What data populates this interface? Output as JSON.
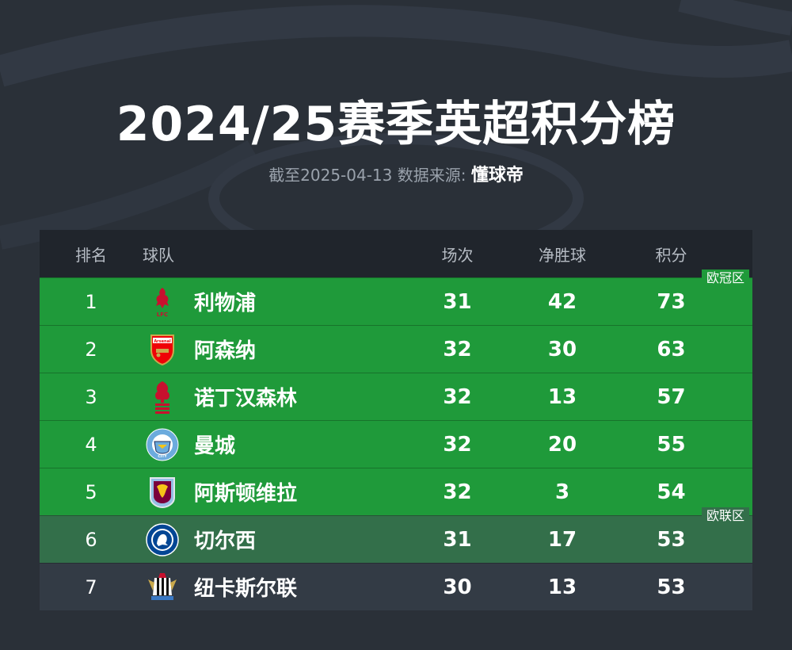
{
  "header": {
    "title": "2024/25赛季英超积分榜",
    "subtitle_prefix": "截至2025-04-13 数据来源:",
    "source_name": "懂球帝"
  },
  "table": {
    "columns": {
      "rank": "排名",
      "team": "球队",
      "played": "场次",
      "goal_diff": "净胜球",
      "points": "积分"
    },
    "zone_labels": {
      "ucl": "欧冠区",
      "uel": "欧联区"
    },
    "rows": [
      {
        "rank": "1",
        "team": "利物浦",
        "played": "31",
        "goal_diff": "42",
        "points": "73",
        "logo": "liverpool-crest-icon"
      },
      {
        "rank": "2",
        "team": "阿森纳",
        "played": "32",
        "goal_diff": "30",
        "points": "63",
        "logo": "arsenal-crest-icon"
      },
      {
        "rank": "3",
        "team": "诺丁汉森林",
        "played": "32",
        "goal_diff": "13",
        "points": "57",
        "logo": "nottingham-forest-crest-icon"
      },
      {
        "rank": "4",
        "team": "曼城",
        "played": "32",
        "goal_diff": "20",
        "points": "55",
        "logo": "manchester-city-crest-icon"
      },
      {
        "rank": "5",
        "team": "阿斯顿维拉",
        "played": "32",
        "goal_diff": "3",
        "points": "54",
        "logo": "aston-villa-crest-icon"
      },
      {
        "rank": "6",
        "team": "切尔西",
        "played": "31",
        "goal_diff": "17",
        "points": "53",
        "logo": "chelsea-crest-icon"
      },
      {
        "rank": "7",
        "team": "纽卡斯尔联",
        "played": "30",
        "goal_diff": "13",
        "points": "53",
        "logo": "newcastle-crest-icon"
      }
    ]
  },
  "colors": {
    "background": "#2a3038",
    "header_row": "#20252c",
    "champions_league_zone": "#1f9a3a",
    "europa_league_zone": "#336f4a",
    "other_row": "#333b45"
  }
}
